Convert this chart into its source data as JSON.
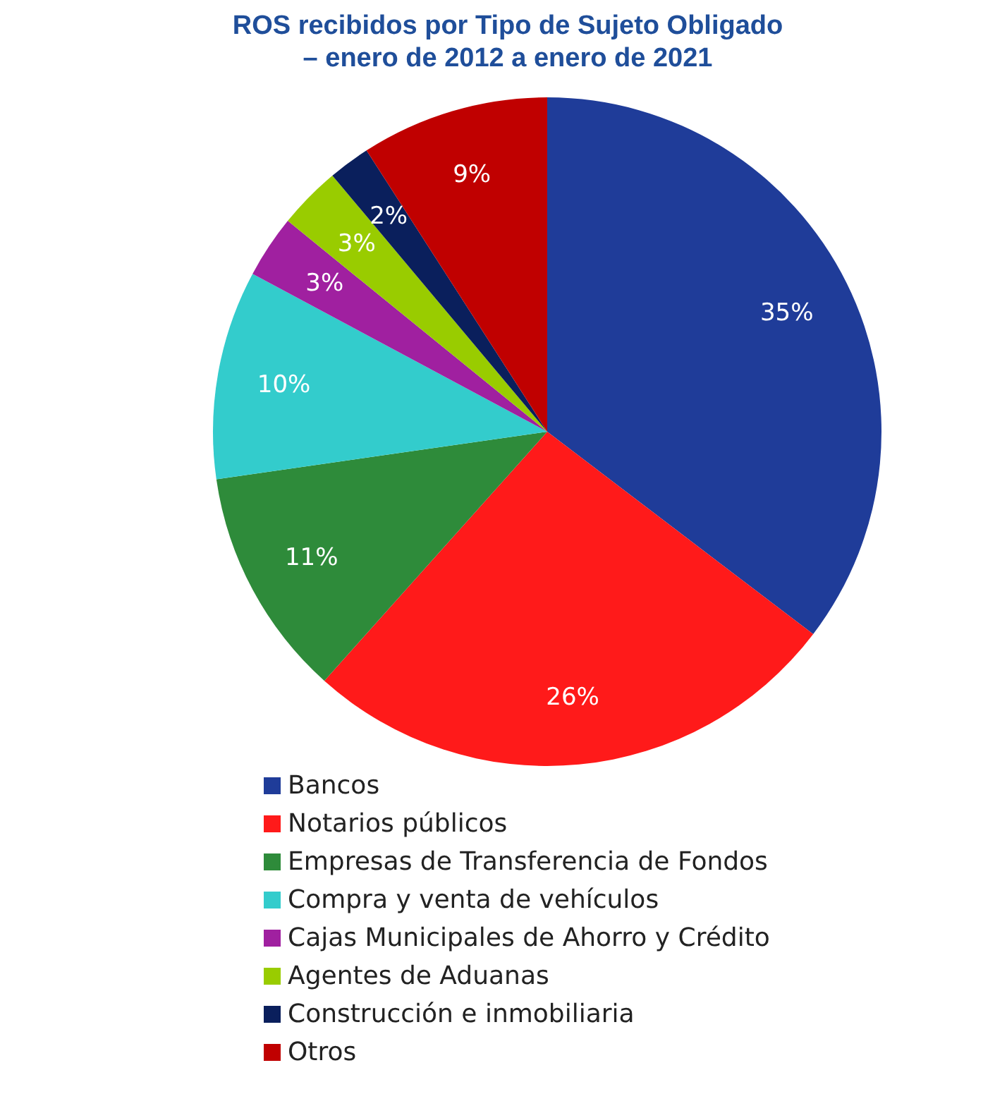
{
  "chart_data": {
    "type": "pie",
    "title": "ROS recibidos por Tipo de Sujeto Obligado",
    "subtitle": "– enero de 2012 a enero de 2021",
    "categories": [
      "Bancos",
      "Notarios públicos",
      "Empresas de Transferencia de Fondos",
      "Compra y venta de vehículos",
      "Cajas Municipales de Ahorro y Crédito",
      "Agentes de Aduanas",
      "Construcción e inmobiliaria",
      "Otros"
    ],
    "values": [
      35,
      26,
      11,
      10,
      3,
      3,
      2,
      9
    ],
    "value_labels": [
      "35%",
      "26%",
      "11%",
      "10%",
      "3%",
      "3%",
      "2%",
      "9%"
    ],
    "colors": [
      "#1f3c99",
      "#ff1a1a",
      "#2e8b3a",
      "#33cccc",
      "#a020a0",
      "#99cc00",
      "#0a1f5c",
      "#c00000"
    ],
    "legend": "bottom"
  }
}
